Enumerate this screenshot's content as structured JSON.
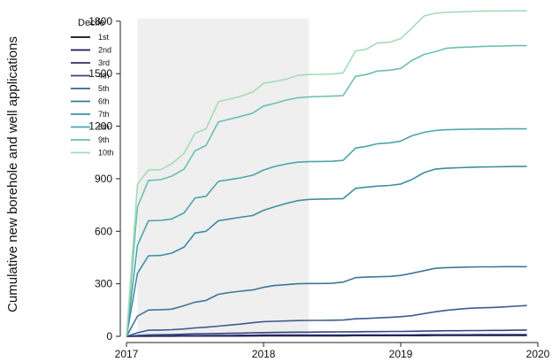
{
  "chart_data": {
    "type": "line",
    "title": "",
    "xlabel": "",
    "ylabel": "Cumulative new borehole and well applications",
    "xlim": [
      2017,
      2020
    ],
    "ylim": [
      0,
      1850
    ],
    "x_ticks": [
      2017,
      2018,
      2019,
      2020
    ],
    "x_tick_labels": [
      "2017",
      "2018",
      "2019",
      "2020"
    ],
    "y_ticks": [
      0,
      300,
      600,
      900,
      1200,
      1500,
      1800
    ],
    "y_tick_labels": [
      "0",
      "300",
      "600",
      "900",
      "1200",
      "1500",
      "1800"
    ],
    "shaded_region": {
      "x_start": 2017.08,
      "x_end": 2018.33,
      "color": "#efefef"
    },
    "legend": {
      "title": "Decile",
      "position": "top-left"
    },
    "x": [
      2017.0,
      2017.08,
      2017.16,
      2017.25,
      2017.33,
      2017.42,
      2017.5,
      2017.58,
      2017.67,
      2017.75,
      2017.83,
      2017.92,
      2018.0,
      2018.08,
      2018.17,
      2018.25,
      2018.33,
      2018.42,
      2018.5,
      2018.58,
      2018.67,
      2018.75,
      2018.83,
      2018.92,
      2019.0,
      2019.08,
      2019.17,
      2019.25,
      2019.33,
      2019.42,
      2019.5,
      2019.58,
      2019.67,
      2019.75,
      2019.83,
      2019.92
    ],
    "series": [
      {
        "name": "1st",
        "color": "#0d0b26",
        "values": [
          0,
          1,
          1,
          1,
          1,
          2,
          2,
          2,
          2,
          2,
          2,
          3,
          3,
          3,
          3,
          3,
          3,
          3,
          3,
          3,
          4,
          4,
          4,
          4,
          4,
          4,
          4,
          5,
          5,
          5,
          5,
          5,
          5,
          5,
          5,
          5
        ]
      },
      {
        "name": "2nd",
        "color": "#1b1a47",
        "values": [
          0,
          1,
          1,
          2,
          2,
          2,
          2,
          3,
          3,
          3,
          3,
          3,
          4,
          4,
          4,
          4,
          4,
          4,
          4,
          5,
          5,
          5,
          5,
          5,
          5,
          5,
          6,
          6,
          6,
          6,
          6,
          6,
          6,
          6,
          6,
          6
        ]
      },
      {
        "name": "3rd",
        "color": "#2e2f6e",
        "values": [
          0,
          2,
          3,
          3,
          3,
          4,
          4,
          5,
          5,
          5,
          6,
          6,
          7,
          7,
          7,
          7,
          7,
          7,
          7,
          7,
          8,
          8,
          8,
          8,
          8,
          8,
          9,
          9,
          9,
          9,
          9,
          10,
          10,
          10,
          10,
          10
        ]
      },
      {
        "name": "4th",
        "color": "#35457f",
        "values": [
          0,
          5,
          8,
          9,
          10,
          12,
          14,
          15,
          16,
          17,
          18,
          20,
          21,
          22,
          23,
          24,
          24,
          25,
          25,
          26,
          26,
          27,
          27,
          28,
          28,
          29,
          30,
          31,
          32,
          32,
          33,
          33,
          34,
          34,
          35,
          36
        ]
      },
      {
        "name": "5th",
        "color": "#3a5e90",
        "values": [
          0,
          20,
          35,
          36,
          38,
          42,
          48,
          52,
          58,
          64,
          70,
          78,
          84,
          86,
          88,
          90,
          91,
          91,
          92,
          93,
          100,
          102,
          105,
          108,
          112,
          118,
          130,
          140,
          148,
          155,
          160,
          163,
          165,
          168,
          172,
          176
        ]
      },
      {
        "name": "6th",
        "color": "#3d7799",
        "values": [
          0,
          115,
          150,
          152,
          155,
          175,
          195,
          205,
          240,
          250,
          258,
          265,
          280,
          290,
          295,
          300,
          302,
          302,
          303,
          310,
          335,
          338,
          340,
          342,
          348,
          360,
          375,
          388,
          392,
          394,
          396,
          397,
          397,
          398,
          398,
          398
        ]
      },
      {
        "name": "7th",
        "color": "#3d8ea4",
        "values": [
          0,
          360,
          460,
          462,
          475,
          510,
          590,
          600,
          660,
          670,
          680,
          690,
          720,
          740,
          760,
          775,
          782,
          784,
          785,
          786,
          845,
          852,
          858,
          862,
          870,
          895,
          935,
          955,
          960,
          963,
          965,
          967,
          968,
          969,
          970,
          970
        ]
      },
      {
        "name": "8th",
        "color": "#4ca5ad",
        "values": [
          0,
          520,
          660,
          662,
          670,
          705,
          790,
          800,
          885,
          895,
          905,
          920,
          950,
          970,
          985,
          995,
          998,
          999,
          1000,
          1005,
          1075,
          1085,
          1100,
          1105,
          1115,
          1145,
          1165,
          1175,
          1180,
          1182,
          1183,
          1184,
          1184,
          1185,
          1185,
          1185
        ]
      },
      {
        "name": "9th",
        "color": "#6cbfb4",
        "values": [
          0,
          740,
          890,
          895,
          915,
          955,
          1060,
          1090,
          1225,
          1240,
          1255,
          1275,
          1315,
          1330,
          1350,
          1362,
          1368,
          1370,
          1372,
          1375,
          1485,
          1495,
          1515,
          1520,
          1530,
          1575,
          1610,
          1625,
          1645,
          1650,
          1652,
          1655,
          1657,
          1658,
          1660,
          1660
        ]
      },
      {
        "name": "10th",
        "color": "#a6dbb6",
        "values": [
          0,
          870,
          950,
          952,
          985,
          1045,
          1160,
          1185,
          1340,
          1355,
          1370,
          1395,
          1445,
          1455,
          1470,
          1490,
          1495,
          1496,
          1498,
          1505,
          1630,
          1640,
          1675,
          1680,
          1700,
          1760,
          1830,
          1845,
          1850,
          1853,
          1855,
          1857,
          1858,
          1858,
          1859,
          1859
        ]
      }
    ]
  }
}
